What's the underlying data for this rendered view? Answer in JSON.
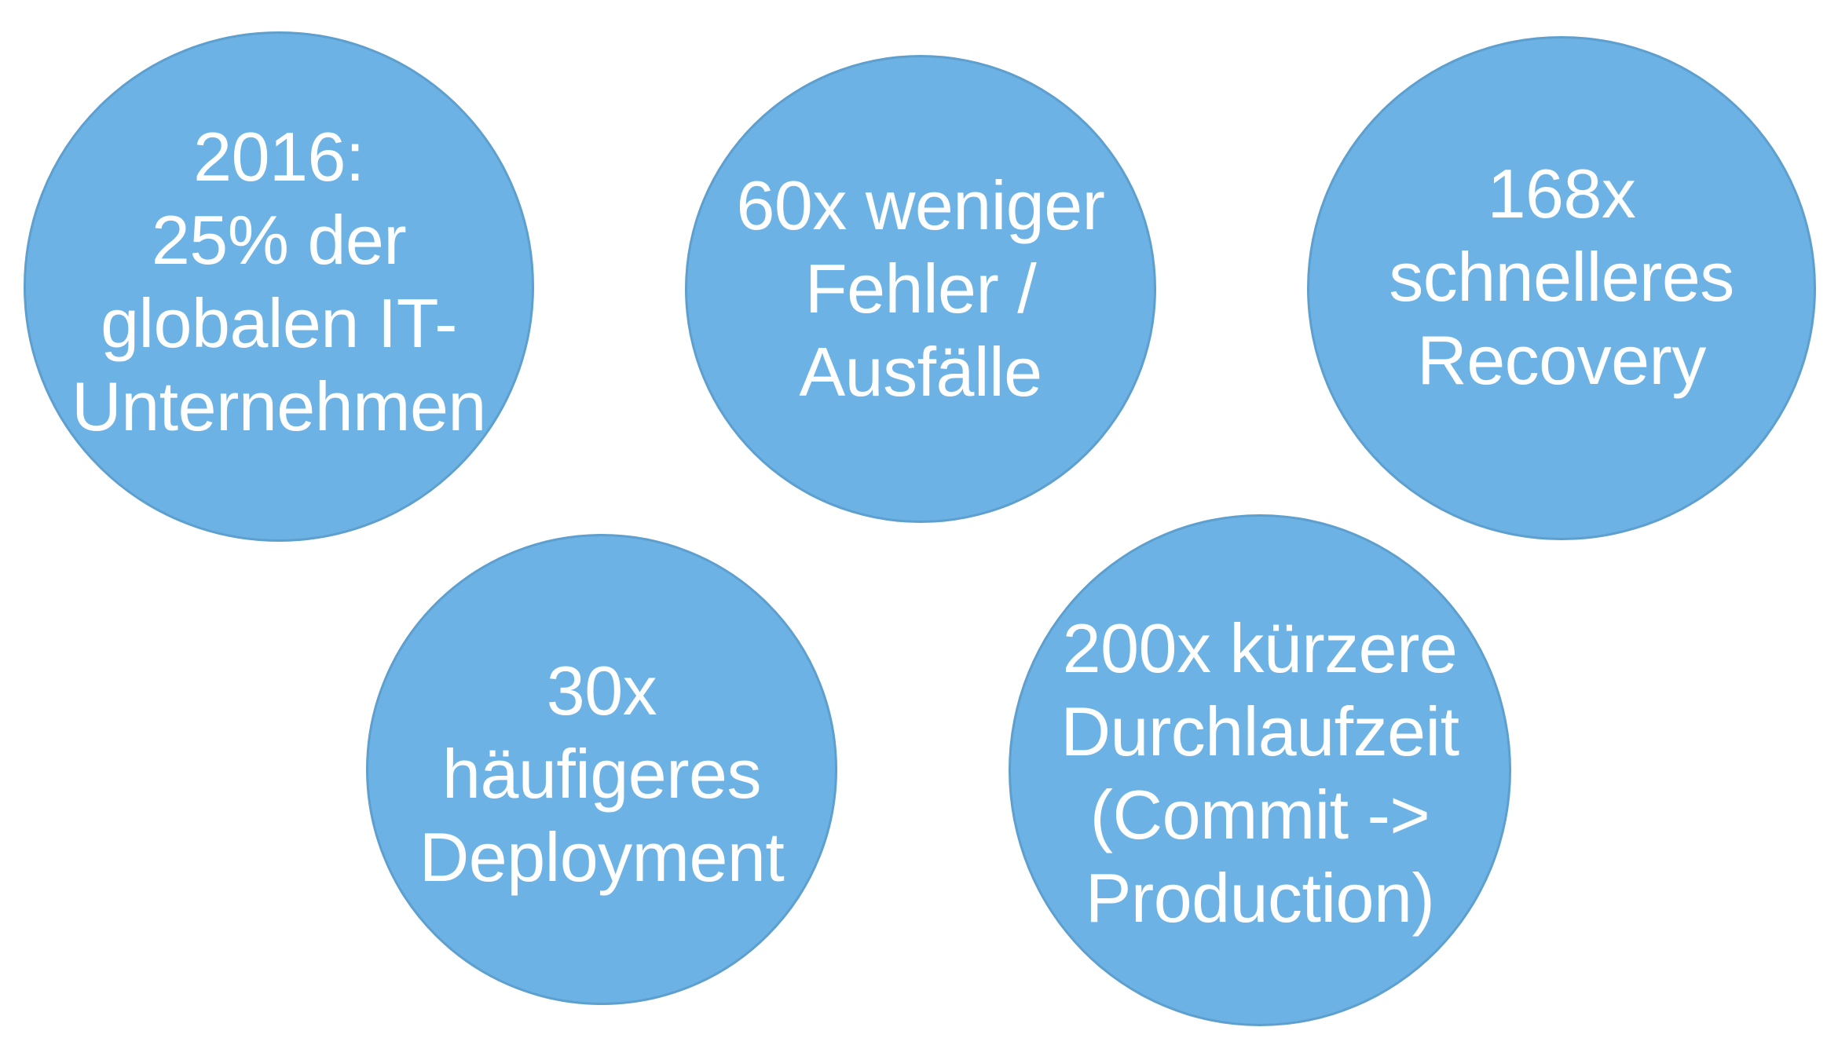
{
  "colors": {
    "bubble_fill": "#6cb2e4",
    "bubble_border": "#5d9fce",
    "text": "#ffffff",
    "background": "#ffffff"
  },
  "bubbles": [
    {
      "lines": [
        "2016:",
        "25% der",
        "globalen IT-",
        "Unternehmen"
      ]
    },
    {
      "lines": [
        "60x weniger",
        "Fehler /",
        "Ausfälle"
      ]
    },
    {
      "lines": [
        "168x",
        "schnelleres",
        "Recovery"
      ]
    },
    {
      "lines": [
        "30x",
        "häufigeres",
        "Deployment"
      ]
    },
    {
      "lines": [
        "200x kürzere",
        "Durchlaufzeit",
        "(Commit ->",
        "Production)"
      ]
    }
  ]
}
